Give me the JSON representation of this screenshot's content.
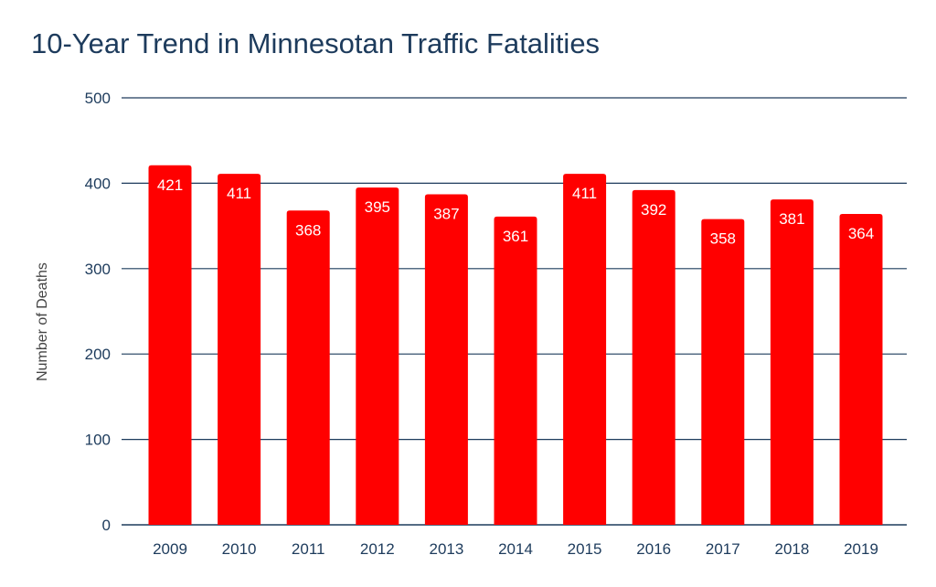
{
  "chart_data": {
    "type": "bar",
    "title": "10-Year Trend in Minnesotan Traffic Fatalities",
    "xlabel": "",
    "ylabel": "Number of Deaths",
    "categories": [
      "2009",
      "2010",
      "2011",
      "2012",
      "2013",
      "2014",
      "2015",
      "2016",
      "2017",
      "2018",
      "2019"
    ],
    "values": [
      421,
      411,
      368,
      395,
      387,
      361,
      411,
      392,
      358,
      381,
      364
    ],
    "ylim": [
      0,
      500
    ],
    "yticks": [
      0,
      100,
      200,
      300,
      400,
      500
    ],
    "grid": true,
    "legend": "none",
    "colors": {
      "bar": "#ff0000",
      "gridline": "#1d3b5c",
      "text": "#1d3b5c",
      "data_label": "#ffffff"
    }
  }
}
